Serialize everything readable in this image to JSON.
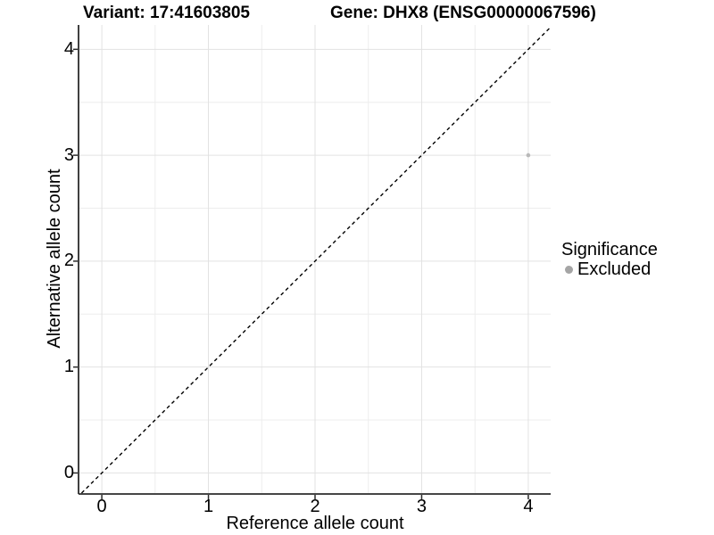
{
  "chart_data": {
    "type": "scatter",
    "titles": {
      "left": "Variant: 17:41603805",
      "right": "Gene: DHX8 (ENSG00000067596)"
    },
    "xlabel": "Reference allele count",
    "ylabel": "Alternative allele count",
    "x_ticks": [
      0,
      1,
      2,
      3,
      4
    ],
    "y_ticks": [
      0,
      1,
      2,
      3,
      4
    ],
    "xlim": [
      -0.21,
      4.21
    ],
    "ylim": [
      -0.19,
      4.23
    ],
    "grid": {
      "major": true,
      "minor": true
    },
    "reference_line": {
      "kind": "identity y=x",
      "style": "dashed",
      "color": "#000000"
    },
    "series": [
      {
        "name": "Excluded",
        "color": "#b9b9b9",
        "points": [
          {
            "x": 4,
            "y": 3
          }
        ]
      }
    ],
    "legend": {
      "title": "Significance",
      "position": "right",
      "items": [
        {
          "label": "Excluded",
          "color": "#a5a5a5"
        }
      ]
    },
    "colors": {
      "grid_major": "#e2e2e2",
      "grid_minor": "#ededed",
      "axis": "#2b2b2b",
      "text": "#000000"
    }
  }
}
